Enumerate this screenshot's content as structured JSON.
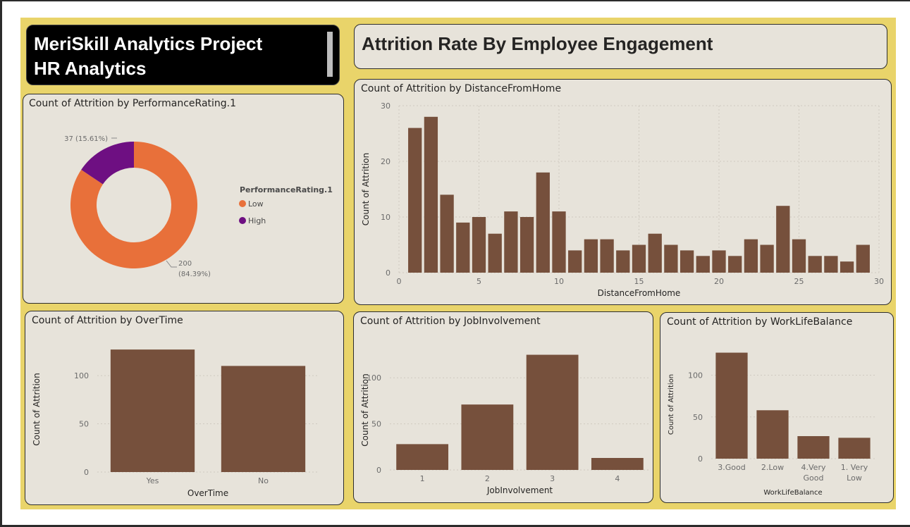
{
  "header": {
    "title_line1": "MeriSkill Analytics Project",
    "title_line2": "HR Analytics",
    "page_heading": "Attrition Rate By Employee Engagement"
  },
  "colors": {
    "canvas": "#e9d46a",
    "panel": "#e7e3da",
    "bar": "#76503c",
    "donut_low": "#e8703a",
    "donut_high": "#6e0f82"
  },
  "chart_data": [
    {
      "id": "performance",
      "type": "pie",
      "title": "Count of Attrition by PerformanceRating.1",
      "legend_title": "PerformanceRating.1",
      "slices": [
        {
          "label": "Low",
          "value": 200,
          "data_label_1": "200",
          "data_label_2": "(84.39%)"
        },
        {
          "label": "High",
          "value": 37,
          "data_label_1": "37 (15.61%)",
          "data_label_2": ""
        }
      ]
    },
    {
      "id": "distance",
      "type": "bar",
      "title": "Count of Attrition by DistanceFromHome",
      "xlabel": "DistanceFromHome",
      "ylabel": "Count of Attrition",
      "x": [
        1,
        2,
        3,
        4,
        5,
        6,
        7,
        8,
        9,
        10,
        11,
        12,
        13,
        14,
        15,
        16,
        17,
        18,
        19,
        20,
        21,
        22,
        23,
        24,
        25,
        26,
        27,
        28,
        29
      ],
      "values": [
        26,
        28,
        14,
        9,
        10,
        7,
        11,
        10,
        18,
        11,
        4,
        6,
        6,
        4,
        5,
        7,
        5,
        4,
        3,
        4,
        3,
        6,
        5,
        12,
        6,
        3,
        3,
        2,
        5
      ],
      "xlim": [
        0,
        30
      ],
      "ylim": [
        0,
        30
      ],
      "xticks": [
        0,
        5,
        10,
        15,
        20,
        25,
        30
      ],
      "yticks": [
        0,
        10,
        20,
        30
      ]
    },
    {
      "id": "overtime",
      "type": "bar",
      "title": "Count of Attrition by OverTime",
      "xlabel": "OverTime",
      "ylabel": "Count of Attrition",
      "categories": [
        "Yes",
        "No"
      ],
      "values": [
        127,
        110
      ],
      "ylim": [
        0,
        130
      ],
      "yticks": [
        0,
        50,
        100
      ]
    },
    {
      "id": "jobinv",
      "type": "bar",
      "title": "Count of Attrition by JobInvolvement",
      "xlabel": "JobInvolvement",
      "ylabel": "Count of Attrition",
      "categories": [
        "1",
        "2",
        "3",
        "4"
      ],
      "values": [
        28,
        71,
        125,
        13
      ],
      "ylim": [
        0,
        130
      ],
      "yticks": [
        0,
        50,
        100
      ]
    },
    {
      "id": "wlb",
      "type": "bar",
      "title": "Count of Attrition by WorkLifeBalance",
      "xlabel": "WorkLifeBalance",
      "ylabel": "Count of Attrition",
      "categories": [
        [
          "3.Good"
        ],
        [
          "2.Low"
        ],
        [
          "4.Very",
          "Good"
        ],
        [
          "1. Very",
          "Low"
        ]
      ],
      "values": [
        127,
        58,
        27,
        25
      ],
      "ylim": [
        0,
        130
      ],
      "yticks": [
        0,
        50,
        100
      ]
    }
  ]
}
